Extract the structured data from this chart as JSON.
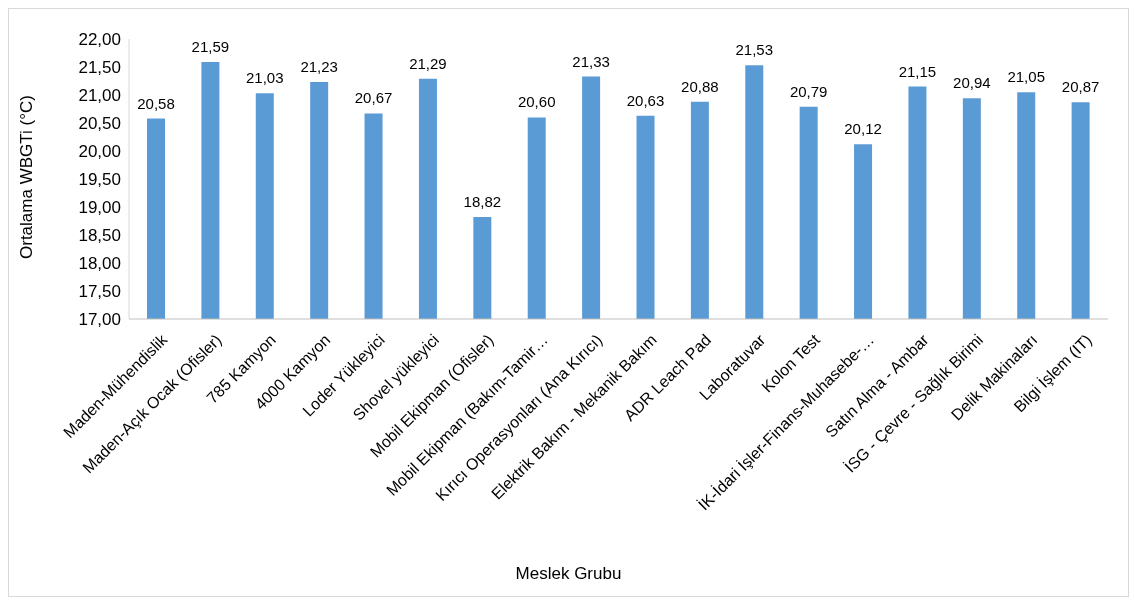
{
  "chart_data": {
    "type": "bar",
    "xlabel": "Meslek Grubu",
    "ylabel": "Ortalama WBGTi (°C)",
    "categories": [
      "Maden-Mühendislik",
      "Maden-Açık Ocak (Ofisler)",
      "785 Kamyon",
      "4000 Kamyon",
      "Loder Yükleyici",
      "Shovel yükleyici",
      "Mobil Ekipman (Ofisler)",
      "Mobil Ekipman (Bakım-Tamir…",
      "Kırıcı Operasyonları (Ana Kırıcı)",
      "Elektrik Bakım - Mekanik Bakım",
      "ADR Leach Pad",
      "Laboratuvar",
      "Kolon Test",
      "İK-İdari İşler-Finans-Muhasebe-…",
      "Satın Alma - Ambar",
      "İSG - Çevre - Sağlık Birimi",
      "Delik Makinaları",
      "Bilgi İşlem (IT)"
    ],
    "values": [
      20.58,
      21.59,
      21.03,
      21.23,
      20.67,
      21.29,
      18.82,
      20.6,
      21.33,
      20.63,
      20.88,
      21.53,
      20.79,
      20.12,
      21.15,
      20.94,
      21.05,
      20.87
    ],
    "value_labels": [
      "20,58",
      "21,59",
      "21,03",
      "21,23",
      "20,67",
      "21,29",
      "18,82",
      "20,60",
      "21,33",
      "20,63",
      "20,88",
      "21,53",
      "20,79",
      "20,12",
      "21,15",
      "20,94",
      "21,05",
      "20,87"
    ],
    "color": "#5b9bd5",
    "ylim": [
      17,
      22
    ],
    "yticks": [
      {
        "value": 17,
        "label": "17,00"
      },
      {
        "value": 17.5,
        "label": "17,50"
      },
      {
        "value": 18,
        "label": "18,00"
      },
      {
        "value": 18.5,
        "label": "18,50"
      },
      {
        "value": 19,
        "label": "19,00"
      },
      {
        "value": 19.5,
        "label": "19,50"
      },
      {
        "value": 20,
        "label": "20,00"
      },
      {
        "value": 20.5,
        "label": "20,50"
      },
      {
        "value": 21,
        "label": "21,00"
      },
      {
        "value": 21.5,
        "label": "21,50"
      },
      {
        "value": 22,
        "label": "22,00"
      }
    ],
    "grid": false,
    "legend": false
  }
}
